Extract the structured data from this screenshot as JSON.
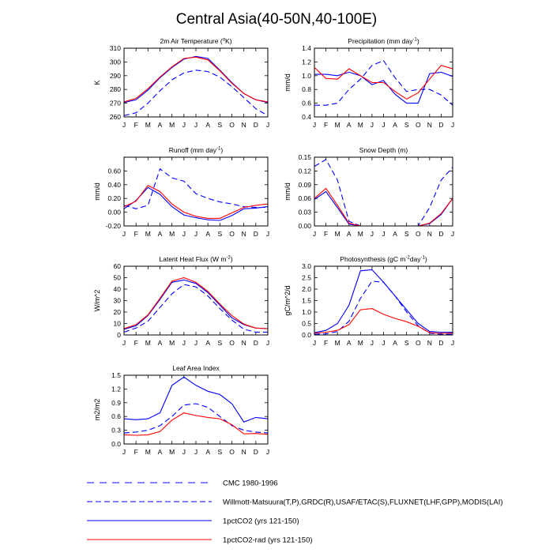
{
  "figure": {
    "title": "Central Asia(40-50N,40-100E)"
  },
  "months": [
    "J",
    "F",
    "M",
    "A",
    "M",
    "J",
    "J",
    "A",
    "S",
    "O",
    "N",
    "D",
    "J"
  ],
  "series_styles": {
    "cmc": {
      "color": "#0000ff",
      "dash": "9,7"
    },
    "obs": {
      "color": "#0000ff",
      "dash": "7,4"
    },
    "co2": {
      "color": "#0000ff",
      "dash": ""
    },
    "rad": {
      "color": "#ff0000",
      "dash": ""
    }
  },
  "legend": [
    {
      "key": "cmc",
      "label": "CMC 1980-1996"
    },
    {
      "key": "obs",
      "label": "Willmott-Matsuura(T,P),GRDC(R),USAF/ETAC(S),FLUXNET(LHF,GPP),MODIS(LAI)"
    },
    {
      "key": "co2",
      "label": "1pctCO2 (yrs 121-150)"
    },
    {
      "key": "rad",
      "label": "1pctCO2-rad (yrs 121-150)"
    }
  ],
  "chart_data": [
    {
      "type": "line",
      "title_parts": [
        [
          "2m Air Temperature (",
          ""
        ],
        [
          "o",
          "sup"
        ],
        [
          "K)",
          ""
        ]
      ],
      "ylabel": "K",
      "ylim": [
        260,
        310
      ],
      "yticks": [
        260,
        270,
        280,
        290,
        300,
        310
      ],
      "ytick_labels": [
        "260",
        "270",
        "280",
        "290",
        "300",
        "310"
      ],
      "series": [
        {
          "style": "obs",
          "values": [
            261,
            263,
            270,
            279,
            287,
            292,
            294,
            293,
            289,
            282,
            274,
            266,
            261
          ]
        },
        {
          "style": "co2",
          "values": [
            270.5,
            272.5,
            279.5,
            288.5,
            296,
            302,
            304,
            302.5,
            294,
            285,
            277,
            272.5,
            270.5
          ]
        },
        {
          "style": "rad",
          "values": [
            271,
            273.5,
            280.5,
            289,
            296.5,
            302.5,
            303.5,
            301.5,
            293.5,
            284.5,
            277,
            272.5,
            271
          ]
        }
      ]
    },
    {
      "type": "line",
      "title_parts": [
        [
          "Precipitation (mm day",
          ""
        ],
        [
          "-1",
          "sup"
        ],
        [
          ")",
          ""
        ]
      ],
      "ylabel": "mm/d",
      "ylim": [
        0.4,
        1.4
      ],
      "yticks": [
        0.4,
        0.6,
        0.8,
        1.0,
        1.2,
        1.4
      ],
      "ytick_labels": [
        "0.4",
        "0.6",
        "0.8",
        "1.0",
        "1.2",
        "1.4"
      ],
      "series": [
        {
          "style": "obs",
          "values": [
            0.57,
            0.57,
            0.6,
            0.8,
            0.95,
            1.15,
            1.22,
            0.97,
            0.77,
            0.8,
            0.8,
            0.72,
            0.57
          ]
        },
        {
          "style": "co2",
          "values": [
            1.02,
            1.02,
            1.0,
            1.05,
            1.0,
            0.87,
            0.93,
            0.73,
            0.6,
            0.6,
            1.03,
            1.05,
            0.99
          ]
        },
        {
          "style": "rad",
          "values": [
            1.12,
            0.96,
            0.95,
            1.1,
            1.0,
            0.9,
            0.9,
            0.77,
            0.66,
            0.75,
            0.95,
            1.15,
            1.1
          ]
        }
      ]
    },
    {
      "type": "line",
      "title_parts": [
        [
          "Runoff (mm day",
          ""
        ],
        [
          "-1",
          "sup"
        ],
        [
          ")",
          ""
        ]
      ],
      "ylabel": "mm/d",
      "ylim": [
        -0.2,
        0.8
      ],
      "yticks": [
        -0.2,
        0.0,
        0.2,
        0.4,
        0.6
      ],
      "ytick_labels": [
        "-0.20",
        "0.00",
        "0.20",
        "0.40",
        "0.60"
      ],
      "series": [
        {
          "style": "obs",
          "values": [
            0.1,
            0.05,
            0.1,
            0.63,
            0.5,
            0.45,
            0.27,
            0.2,
            0.15,
            0.12,
            0.08,
            0.07,
            0.07
          ]
        },
        {
          "style": "co2",
          "values": [
            0.05,
            0.17,
            0.36,
            0.26,
            0.08,
            -0.04,
            -0.08,
            -0.11,
            -0.12,
            -0.05,
            0.05,
            0.06,
            0.08
          ]
        },
        {
          "style": "rad",
          "values": [
            0.08,
            0.16,
            0.39,
            0.3,
            0.12,
            0.0,
            -0.06,
            -0.09,
            -0.09,
            -0.01,
            0.07,
            0.1,
            0.12
          ]
        }
      ]
    },
    {
      "type": "line",
      "title_parts": [
        [
          "Snow Depth (m)",
          ""
        ]
      ],
      "ylabel": "mm/d",
      "ylim": [
        0,
        0.15
      ],
      "yticks": [
        0,
        0.03,
        0.06,
        0.09,
        0.12,
        0.15
      ],
      "ytick_labels": [
        "0.00",
        "0.03",
        "0.06",
        "0.09",
        "0.12",
        "0.15"
      ],
      "series": [
        {
          "style": "obs",
          "values": [
            0.13,
            0.145,
            0.1,
            0.01,
            0.0,
            0.0,
            0.0,
            0.0,
            0.0,
            0.0,
            0.04,
            0.1,
            0.128
          ]
        },
        {
          "style": "co2",
          "values": [
            0.058,
            0.075,
            0.04,
            0.004,
            0.0,
            0.0,
            0.0,
            0.0,
            0.0,
            0.0,
            0.005,
            0.025,
            0.06
          ]
        },
        {
          "style": "rad",
          "values": [
            0.06,
            0.082,
            0.045,
            0.006,
            0.0,
            0.0,
            0.0,
            0.0,
            0.0,
            0.0,
            0.006,
            0.027,
            0.06
          ]
        }
      ]
    },
    {
      "type": "line",
      "title_parts": [
        [
          "Latent Heat Flux (W m",
          ""
        ],
        [
          "-2",
          "sup"
        ],
        [
          ")",
          ""
        ]
      ],
      "ylabel": "W/m^2",
      "ylim": [
        0,
        60
      ],
      "yticks": [
        0,
        10,
        20,
        30,
        40,
        50,
        60
      ],
      "ytick_labels": [
        "0",
        "10",
        "20",
        "30",
        "40",
        "50",
        "60"
      ],
      "series": [
        {
          "style": "obs",
          "values": [
            2.5,
            6,
            12,
            24,
            36,
            44,
            42,
            34,
            23,
            13,
            5,
            2.5,
            2.5
          ]
        },
        {
          "style": "co2",
          "values": [
            5,
            8,
            17,
            31,
            46,
            48,
            45,
            37,
            26,
            15,
            9,
            6,
            5.5
          ]
        },
        {
          "style": "rad",
          "values": [
            5.5,
            9,
            17.5,
            32,
            47,
            50,
            46,
            38,
            27,
            17,
            9.5,
            6,
            5.5
          ]
        }
      ]
    },
    {
      "type": "line",
      "title_parts": [
        [
          "Photosynthesis (gC m",
          ""
        ],
        [
          "-2",
          "sup"
        ],
        [
          "day",
          ""
        ],
        [
          "-1",
          "sup"
        ],
        [
          ")",
          ""
        ]
      ],
      "ylabel": "gC/m^2/d",
      "ylim": [
        0,
        3.0
      ],
      "yticks": [
        0,
        0.5,
        1.0,
        1.5,
        2.0,
        2.5,
        3.0
      ],
      "ytick_labels": [
        "0.0",
        "0.5",
        "1.0",
        "1.5",
        "2.0",
        "2.5",
        "3.0"
      ],
      "series": [
        {
          "style": "obs",
          "values": [
            0.03,
            0.05,
            0.15,
            0.6,
            1.6,
            2.35,
            2.3,
            1.7,
            1.0,
            0.4,
            0.08,
            0.03,
            0.03
          ]
        },
        {
          "style": "co2",
          "values": [
            0.1,
            0.2,
            0.5,
            1.3,
            2.8,
            2.85,
            2.3,
            1.7,
            1.1,
            0.5,
            0.15,
            0.12,
            0.12
          ]
        },
        {
          "style": "rad",
          "values": [
            0.08,
            0.12,
            0.2,
            0.45,
            1.1,
            1.15,
            0.9,
            0.72,
            0.58,
            0.38,
            0.1,
            0.07,
            0.08
          ]
        }
      ]
    },
    {
      "type": "line",
      "title_parts": [
        [
          "Leaf Area Index",
          ""
        ]
      ],
      "ylabel": "m2/m2",
      "ylim": [
        0,
        1.5
      ],
      "yticks": [
        0,
        0.3,
        0.6,
        0.9,
        1.2,
        1.5
      ],
      "ytick_labels": [
        "0.0",
        "0.3",
        "0.6",
        "0.9",
        "1.2",
        "1.5"
      ],
      "series": [
        {
          "style": "obs",
          "values": [
            0.24,
            0.26,
            0.3,
            0.4,
            0.6,
            0.85,
            0.88,
            0.8,
            0.6,
            0.4,
            0.3,
            0.26,
            0.24
          ]
        },
        {
          "style": "co2",
          "values": [
            0.55,
            0.53,
            0.55,
            0.68,
            1.28,
            1.46,
            1.28,
            1.15,
            1.08,
            0.88,
            0.48,
            0.58,
            0.55
          ]
        },
        {
          "style": "rad",
          "values": [
            0.2,
            0.19,
            0.2,
            0.27,
            0.52,
            0.68,
            0.62,
            0.58,
            0.55,
            0.42,
            0.22,
            0.23,
            0.21
          ]
        }
      ]
    }
  ]
}
